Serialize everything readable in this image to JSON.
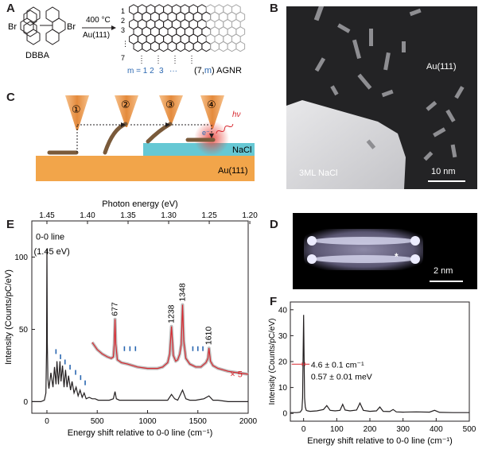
{
  "panel_labels": {
    "a": "A",
    "b": "B",
    "c": "C",
    "d": "D",
    "e": "E",
    "f": "F"
  },
  "panel_a": {
    "molecule": "DBBA",
    "br_left": "Br",
    "br_right": "Br",
    "temperature": "400 °C",
    "substrate": "Au(111)",
    "row_labels": [
      "1",
      "2",
      "3",
      "7"
    ],
    "m_label": "m = 1 2",
    "m3": "3",
    "m_dots": "···",
    "agnr_prefix": "(7,",
    "agnr_m": "m",
    "agnr_suffix": ") AGNR"
  },
  "panel_b": {
    "substrate": "Au(111)",
    "nacl": "3ML NaCl",
    "scale": "10 nm"
  },
  "panel_c": {
    "steps": [
      "①",
      "②",
      "③",
      "④"
    ],
    "nacl": "NaCl",
    "au": "Au(111)",
    "electron": "e⁻",
    "photon": "hν"
  },
  "panel_d": {
    "scale": "2 nm",
    "marker": "*"
  },
  "panel_e": {
    "top_axis_label": "Photon energy (eV)",
    "top_ticks": [
      "1.45",
      "1.40",
      "1.35",
      "1.30",
      "1.25",
      "1.20"
    ],
    "top_tick_values": [
      1.45,
      1.4,
      1.35,
      1.3,
      1.25,
      1.2
    ],
    "ylabel": "Intensity (Counts/pC/eV)",
    "xlabel": "Energy shift relative to 0-0 line (cm⁻¹)",
    "y_ticks": [
      "0",
      "50",
      "100"
    ],
    "x_ticks": [
      "0",
      "500",
      "1000",
      "1500",
      "2000"
    ],
    "zero_line_label_1": "0-0 line",
    "zero_line_label_2": "(1.45 eV)",
    "peak_labels": [
      "677",
      "1238",
      "1348",
      "1610"
    ],
    "inset_scale": "× 5"
  },
  "panel_f": {
    "ylabel": "Intensity (Counts/pC/eV)",
    "xlabel": "Energy shift relative to 0-0 line (cm⁻¹)",
    "y_ticks": [
      "0",
      "10",
      "20",
      "30",
      "40"
    ],
    "x_ticks": [
      "0",
      "100",
      "200",
      "300",
      "400",
      "500"
    ],
    "fwhm_label": "4.6 ± 0.1 cm⁻¹",
    "energy_label": "0.57 ± 0.01 meV"
  },
  "colors": {
    "red": "#d7282f",
    "blue": "#2a67b1",
    "tip": "#e48a3c",
    "nacl": "#66c8d4",
    "au": "#f2a54a",
    "ribbon": "#7a5a3a"
  },
  "chart_data": [
    {
      "type": "line",
      "name": "E",
      "xlabel": "Energy shift relative to 0-0 line (cm⁻¹)",
      "ylabel": "Intensity (Counts/pC/eV)",
      "xlim": [
        -150,
        2000
      ],
      "ylim": [
        -8,
        125
      ],
      "x2label": "Photon energy (eV)",
      "series": [
        {
          "x": [
            -150,
            -60,
            -25,
            -10,
            -4,
            0,
            4,
            10,
            20,
            40,
            60,
            75,
            90,
            100,
            115,
            130,
            140,
            155,
            170,
            185,
            200,
            215,
            235,
            250,
            270,
            290,
            310,
            330,
            350,
            370,
            390,
            420,
            450,
            480,
            510,
            540,
            580,
            620,
            660,
            677,
            690,
            720,
            800,
            900,
            1000,
            1100,
            1200,
            1238,
            1270,
            1300,
            1348,
            1380,
            1420,
            1480,
            1560,
            1610,
            1650,
            1700,
            1800,
            1900,
            2000
          ],
          "y": [
            0,
            0,
            1,
            6,
            35,
            106,
            40,
            16,
            9,
            20,
            10,
            24,
            12,
            28,
            12,
            28,
            14,
            25,
            10,
            22,
            10,
            18,
            8,
            14,
            6,
            10,
            4,
            8,
            3,
            6,
            2,
            3,
            2,
            2,
            1,
            1,
            1,
            1,
            2,
            7,
            2,
            1,
            1,
            1,
            1,
            1,
            1,
            5,
            2,
            1,
            8,
            2,
            1,
            1,
            2,
            4,
            1,
            1,
            0,
            0,
            0
          ]
        },
        {
          "name": "× 5",
          "x": [
            450,
            500,
            550,
            600,
            640,
            660,
            670,
            677,
            684,
            700,
            740,
            800,
            900,
            1000,
            1100,
            1150,
            1200,
            1220,
            1238,
            1256,
            1280,
            1300,
            1320,
            1335,
            1348,
            1360,
            1380,
            1420,
            1480,
            1530,
            1580,
            1600,
            1610,
            1625,
            1650,
            1700,
            1800,
            1900,
            2000
          ],
          "y": [
            41,
            36,
            33,
            31,
            30,
            31,
            40,
            57,
            40,
            29,
            27,
            26,
            24,
            23,
            23,
            24,
            27,
            33,
            52,
            32,
            28,
            29,
            33,
            40,
            67,
            42,
            30,
            26,
            24,
            24,
            27,
            30,
            37,
            28,
            25,
            23,
            21,
            20,
            19
          ]
        }
      ],
      "blue_ticks_x": [
        90,
        135,
        180,
        230,
        285,
        335,
        380,
        770,
        825,
        880,
        1450,
        1500,
        1550
      ]
    },
    {
      "type": "line",
      "name": "F",
      "xlabel": "Energy shift relative to 0-0 line (cm⁻¹)",
      "ylabel": "Intensity (Counts/pC/eV)",
      "xlim": [
        -40,
        500
      ],
      "ylim": [
        -3,
        43
      ],
      "series": [
        {
          "x": [
            -40,
            -20,
            -10,
            -5,
            -3,
            -2,
            0,
            2,
            3,
            5,
            8,
            12,
            20,
            40,
            60,
            70,
            80,
            95,
            110,
            118,
            125,
            140,
            160,
            170,
            180,
            200,
            220,
            230,
            240,
            260,
            270,
            280,
            300,
            340,
            380,
            395,
            410,
            450,
            500
          ],
          "y": [
            0.3,
            0.3,
            0.5,
            1.5,
            6,
            16,
            38,
            16,
            6,
            2.5,
            1.2,
            1,
            0.8,
            1,
            1.5,
            3,
            1.2,
            1,
            1.2,
            3.5,
            1.3,
            1,
            1.3,
            4,
            1.2,
            0.8,
            1,
            2.5,
            0.8,
            0.7,
            1.5,
            0.6,
            0.5,
            0.6,
            0.5,
            1.2,
            0.4,
            0.3,
            0.3
          ]
        }
      ]
    }
  ]
}
